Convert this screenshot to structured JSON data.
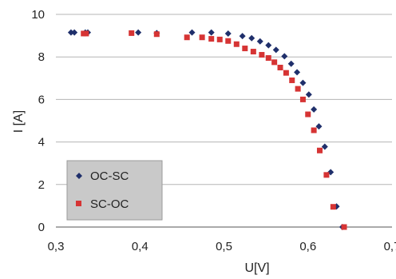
{
  "chart_data": {
    "type": "scatter",
    "xlabel": "U[V]",
    "ylabel": "I [A]",
    "xlim": [
      0.3,
      0.7
    ],
    "ylim": [
      0,
      10
    ],
    "x_ticks": [
      "0,3",
      "0,4",
      "0,5",
      "0,6",
      "0,7"
    ],
    "y_ticks": [
      "0",
      "2",
      "4",
      "6",
      "8",
      "10"
    ],
    "x_tick_values": [
      0.3,
      0.4,
      0.5,
      0.6,
      0.7
    ],
    "y_tick_values": [
      0,
      2,
      4,
      6,
      8,
      10
    ],
    "grid": "horizontal",
    "legend_position": "bottom-left",
    "series": [
      {
        "name": "OC-SC",
        "marker": "diamond",
        "color": "#1f2f6b",
        "points": [
          [
            0.318,
            9.15
          ],
          [
            0.322,
            9.15
          ],
          [
            0.335,
            9.15
          ],
          [
            0.338,
            9.15
          ],
          [
            0.398,
            9.15
          ],
          [
            0.42,
            9.12
          ],
          [
            0.462,
            9.15
          ],
          [
            0.485,
            9.15
          ],
          [
            0.505,
            9.1
          ],
          [
            0.522,
            8.98
          ],
          [
            0.533,
            8.88
          ],
          [
            0.543,
            8.73
          ],
          [
            0.553,
            8.55
          ],
          [
            0.562,
            8.33
          ],
          [
            0.572,
            8.03
          ],
          [
            0.58,
            7.68
          ],
          [
            0.587,
            7.28
          ],
          [
            0.594,
            6.78
          ],
          [
            0.601,
            6.23
          ],
          [
            0.607,
            5.53
          ],
          [
            0.613,
            4.73
          ],
          [
            0.62,
            3.78
          ],
          [
            0.627,
            2.58
          ],
          [
            0.634,
            0.97
          ],
          [
            0.641,
            0.0
          ]
        ]
      },
      {
        "name": "SC-OC",
        "marker": "square",
        "color": "#d63434",
        "points": [
          [
            0.333,
            9.1
          ],
          [
            0.336,
            9.1
          ],
          [
            0.39,
            9.12
          ],
          [
            0.42,
            9.07
          ],
          [
            0.456,
            8.92
          ],
          [
            0.474,
            8.92
          ],
          [
            0.485,
            8.85
          ],
          [
            0.495,
            8.82
          ],
          [
            0.505,
            8.75
          ],
          [
            0.515,
            8.6
          ],
          [
            0.525,
            8.4
          ],
          [
            0.535,
            8.25
          ],
          [
            0.545,
            8.1
          ],
          [
            0.553,
            7.95
          ],
          [
            0.56,
            7.75
          ],
          [
            0.567,
            7.5
          ],
          [
            0.574,
            7.25
          ],
          [
            0.581,
            6.9
          ],
          [
            0.588,
            6.5
          ],
          [
            0.594,
            6.0
          ],
          [
            0.6,
            5.3
          ],
          [
            0.607,
            4.55
          ],
          [
            0.614,
            3.6
          ],
          [
            0.622,
            2.45
          ],
          [
            0.63,
            0.95
          ],
          [
            0.643,
            0.0
          ]
        ]
      }
    ]
  }
}
